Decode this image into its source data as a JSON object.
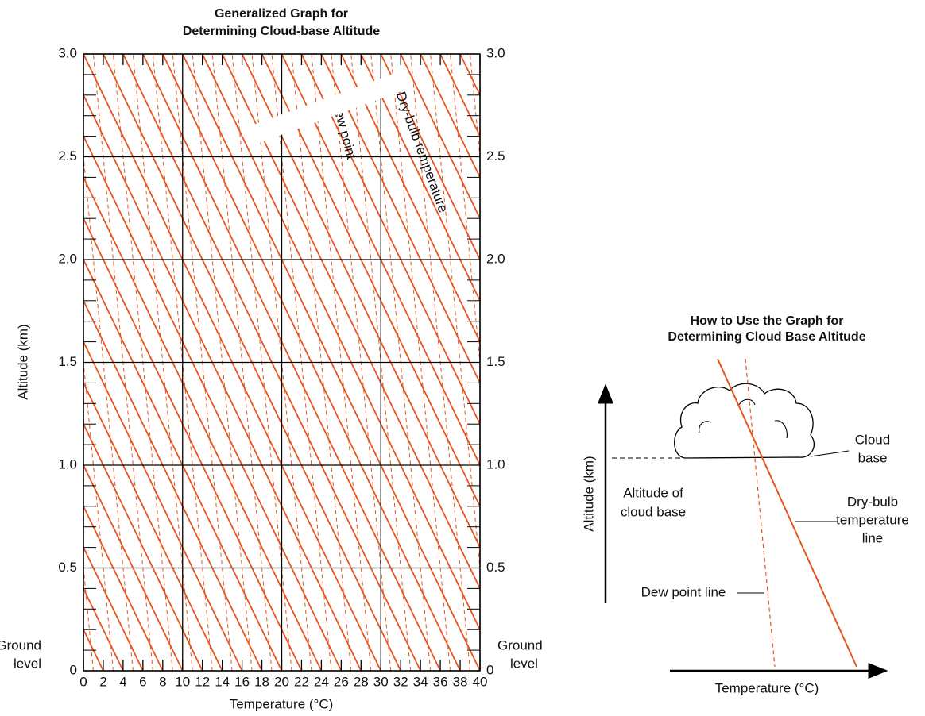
{
  "graph": {
    "title": [
      "Generalized Graph for",
      "Determining Cloud-base Altitude"
    ],
    "xlabel": "Temperature (°C)",
    "ylabel": "Altitude (km)",
    "xlim": [
      0,
      40
    ],
    "ylim": [
      0,
      3
    ],
    "xticks": [
      0,
      2,
      4,
      6,
      8,
      10,
      12,
      14,
      16,
      18,
      20,
      22,
      24,
      26,
      28,
      30,
      32,
      34,
      36,
      38,
      40
    ],
    "yticks": [
      0,
      0.5,
      {
        "value": 1,
        "label": "1.0"
      },
      1.5,
      {
        "value": 2,
        "label": "2.0"
      },
      2.5,
      {
        "value": 3,
        "label": "3.0"
      }
    ],
    "ground_label": [
      "Ground",
      "level"
    ],
    "annotations": {
      "dew_point": "Dew point",
      "dry_bulb": "Dry-bulb temperature"
    },
    "color": "#e8541e"
  },
  "diagram": {
    "title": [
      "How to Use the Graph for",
      "Determining Cloud Base Altitude"
    ],
    "ylabel": "Altitude (km)",
    "xlabel": "Temperature (°C)",
    "labels": {
      "altitude_of_cloud_base": [
        "Altitude of",
        "cloud base"
      ],
      "cloud_base": [
        "Cloud",
        "base"
      ],
      "dry_bulb_line": [
        "Dry-bulb",
        "temperature",
        "line"
      ],
      "dew_point_line": "Dew point line"
    }
  }
}
